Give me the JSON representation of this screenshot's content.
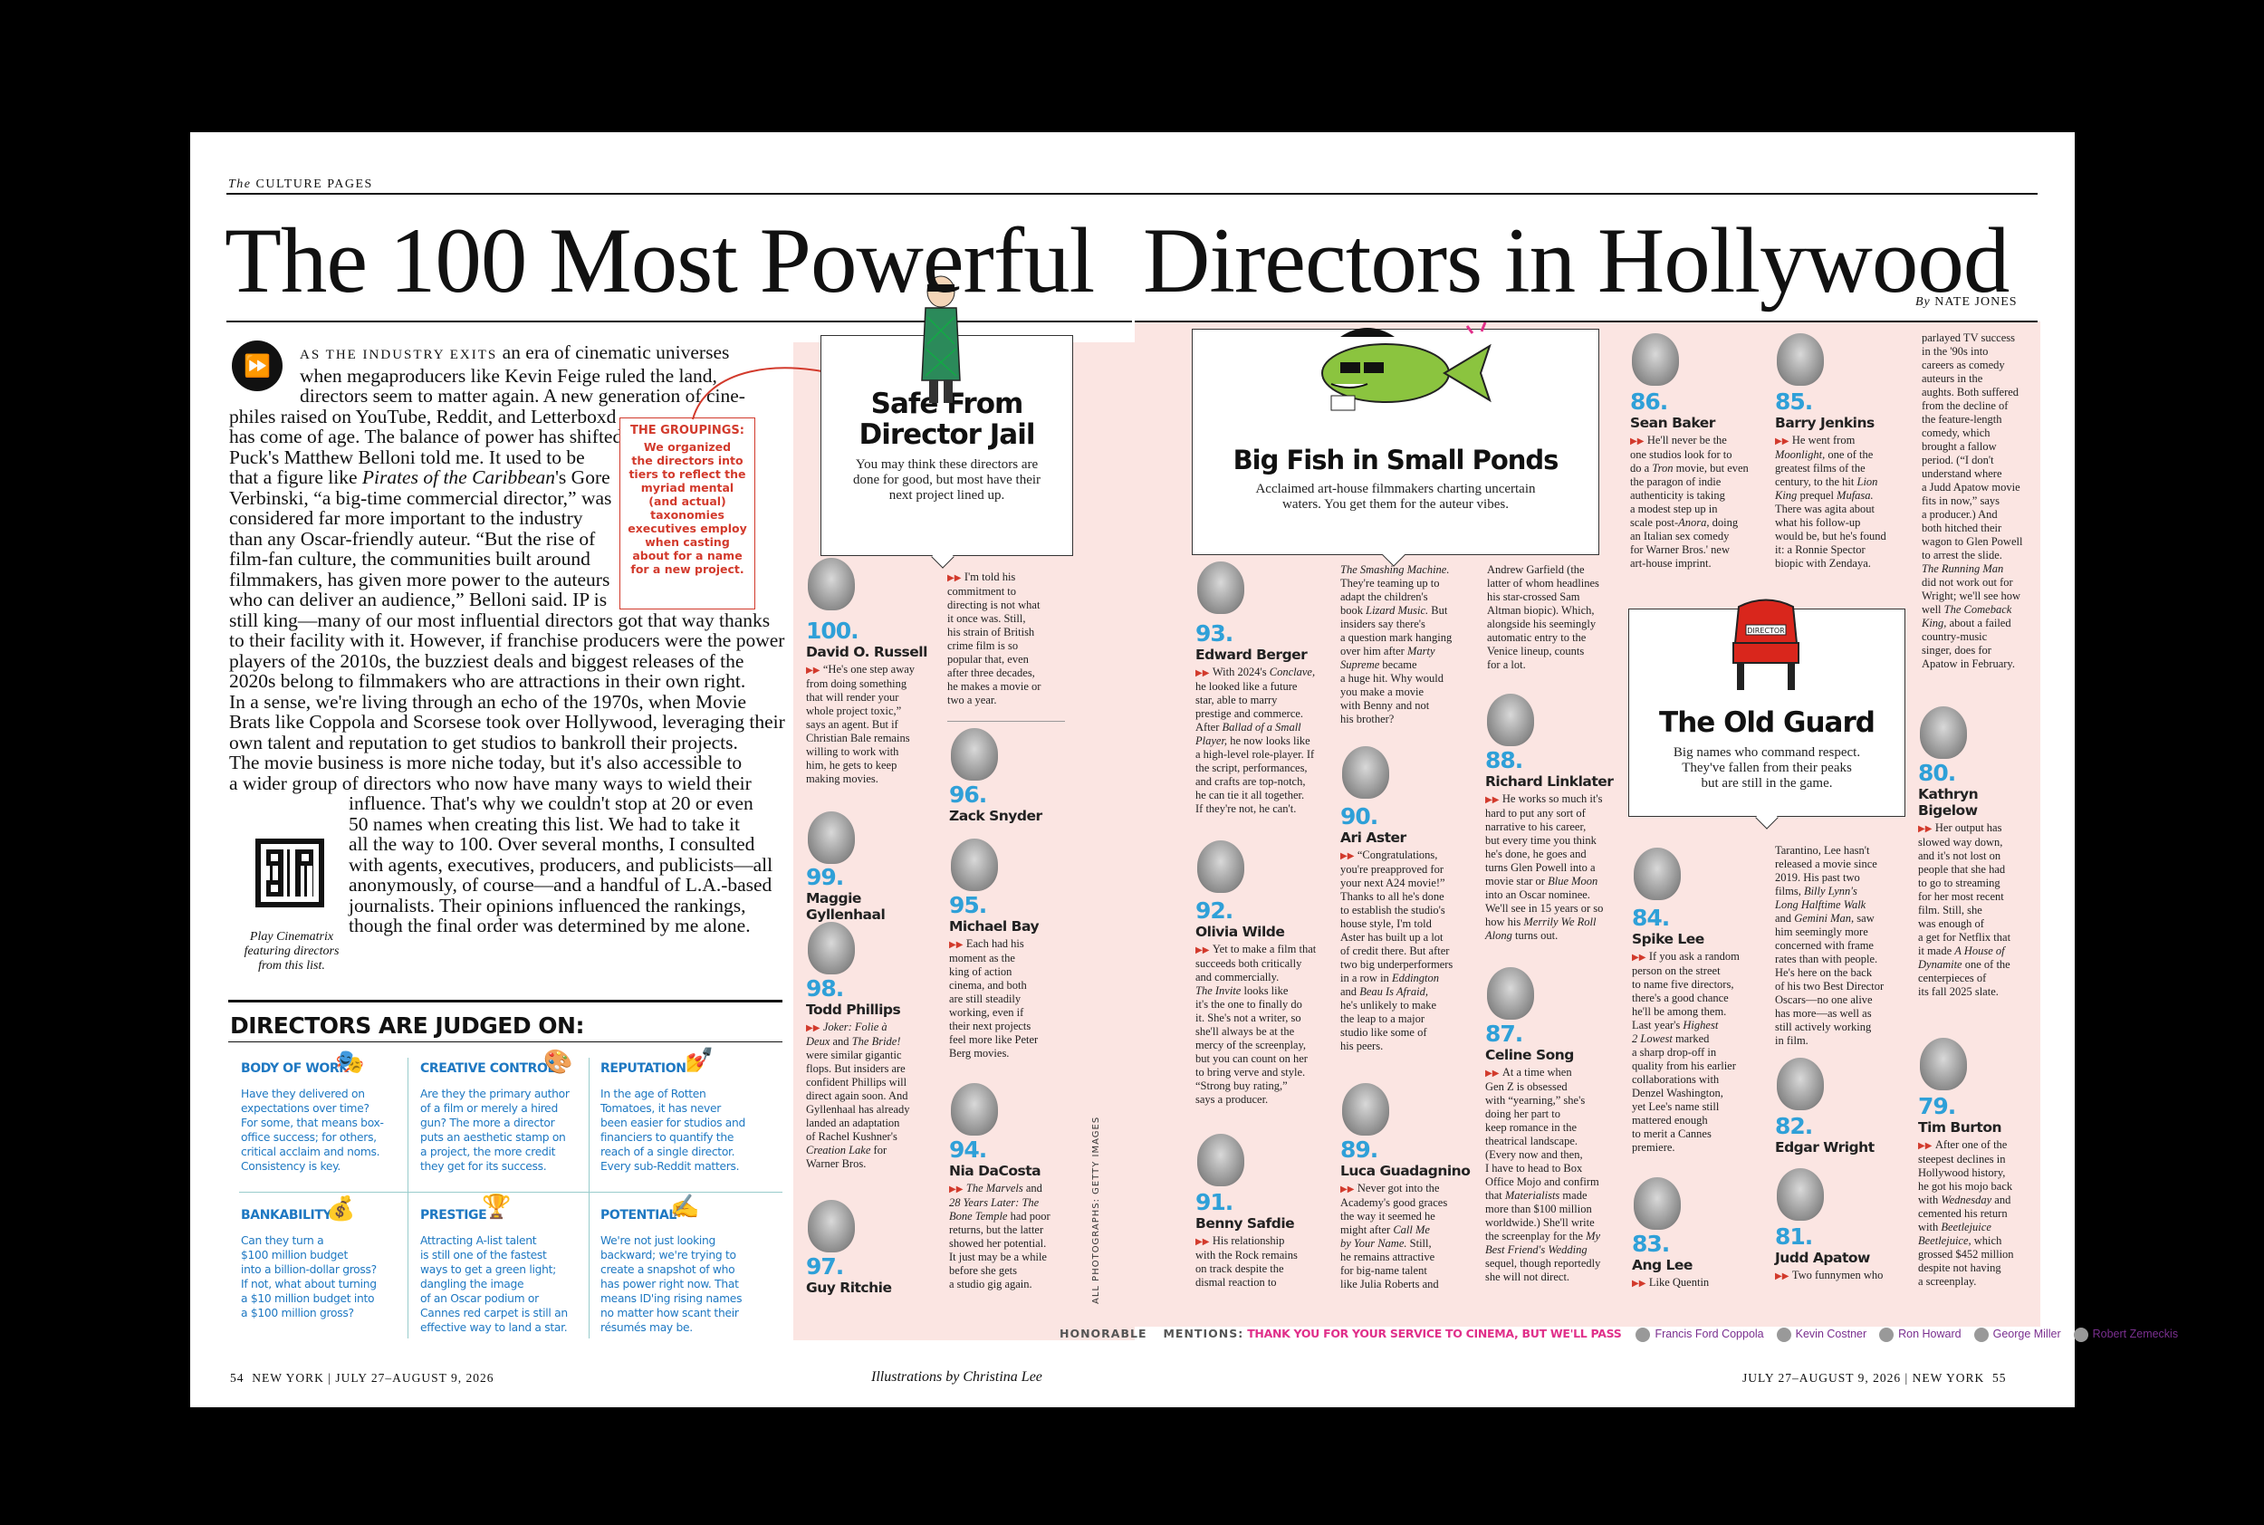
{
  "header": {
    "section_prefix": "The",
    "section": "CULTURE PAGES",
    "title_left": "The 100 Most Powerful",
    "title_right": "Directors in Hollywood",
    "byline_prefix": "By",
    "byline": "NATE JONES"
  },
  "intro": {
    "lead": "AS THE INDUSTRY EXITS",
    "l1": "an era of cinematic universes",
    "l2": "when megaproducers like Kevin Feige ruled the land,",
    "l3": "directors seem to matter again. A new generation of cine-",
    "l4": "philes raised on YouTube, Reddit, and Letterboxd",
    "l5": "has come of age. The balance of power has shifted,",
    "l6": "Puck's Matthew Belloni told me. It used to be",
    "l7a": "that a figure like ",
    "l7i": "Pirates of the Caribbean",
    "l7b": "'s Gore",
    "l8": "Verbinski, “a big-time commercial director,” was",
    "l9": "considered far more important to the industry",
    "l10": "than any Oscar-friendly auteur. “But the rise of",
    "l11": "film-fan culture, the communities built around",
    "l12": "filmmakers, has given more power to the auteurs",
    "l13": "who can deliver an audience,” Belloni said. IP is",
    "l14": "still king—many of our most influential directors got that way thanks",
    "l15": "to their facility with it. However, if franchise producers were the power",
    "l16": "players of the 2010s, the buzziest deals and biggest releases of the",
    "l17": "2020s belong to filmmakers who are attractions in their own right.",
    "l18": "In a sense, we're living through an echo of the 1970s, when Movie",
    "l19": "Brats like Coppola and Scorsese took over Hollywood, leveraging their",
    "l20": "own talent and reputation to get studios to bankroll their projects.",
    "l21": "The movie business is more niche today, but it's also accessible to",
    "l22": "a wider group of directors who now have many ways to wield their",
    "l23": "influence. That's why we couldn't stop at 20 or even",
    "l24": "50 names when creating this list. We had to take it",
    "l25": "all the way to 100. Over several months, I consulted",
    "l26": "with agents, executives, producers, and publicists—all",
    "l27": "anonymously, of course—and a handful of L.A.-based",
    "l28": "journalists. Their opinions influenced the rankings,",
    "l29": "though the final order was determined by me alone."
  },
  "qr_caption": {
    "l1": "Play Cinematrix",
    "l2": "featuring directors",
    "l3": "from this list."
  },
  "groupings": {
    "head": "THE GROUPINGS:",
    "l1": "We organized",
    "l2": "the directors into",
    "l3": "tiers to reflect the",
    "l4": "myriad mental",
    "l5": "(and actual)",
    "l6": "taxonomies",
    "l7": "executives employ",
    "l8": "when casting",
    "l9": "about for a name",
    "l10": "for a new project."
  },
  "judged": {
    "heading": "DIRECTORS ARE JUDGED ON:",
    "c1": {
      "label": "BODY OF WORK",
      "icon": "theater-masks-icon",
      "l1": "Have they delivered on",
      "l2": "expectations over time?",
      "l3": "For some, that means box-",
      "l4": "office success; for others,",
      "l5": "critical acclaim and noms.",
      "l6": "Consistency is key."
    },
    "c2": {
      "label": "CREATIVE CONTROL",
      "icon": "palette-icon",
      "l1": "Are they the primary author",
      "l2": "of a film or merely a hired",
      "l3": "gun? The more a director",
      "l4": "puts an aesthetic stamp on",
      "l5": "a project, the more credit",
      "l6": "they get for its success."
    },
    "c3": {
      "label": "REPUTATION",
      "icon": "nail-polish-icon",
      "l1": "In the age of Rotten",
      "l2": "Tomatoes, it has never",
      "l3": "been easier for studios and",
      "l4": "financiers to quantify the",
      "l5": "reach of a single director.",
      "l6": "Every sub-Reddit matters."
    },
    "c4": {
      "label": "BANKABILITY",
      "icon": "money-bag-icon",
      "l1": "Can they turn a",
      "l2": "$100 million budget",
      "l3": "into a billion-dollar gross?",
      "l4": "If not, what about turning",
      "l5": "a $10 million budget into",
      "l6": "a $100 million gross?"
    },
    "c5": {
      "label": "PRESTIGE",
      "icon": "trophy-icon",
      "l1": "Attracting A-list talent",
      "l2": "is still one of the fastest",
      "l3": "ways to get a green light;",
      "l4": "dangling the image",
      "l5": "of an Oscar podium or",
      "l6": "Cannes red carpet is still an",
      "l7": "effective way to land a star."
    },
    "c6": {
      "label": "POTENTIAL",
      "icon": "writing-hand-icon",
      "l1": "We're not just looking",
      "l2": "backward; we're trying to",
      "l3": "create a snapshot of who",
      "l4": "has power right now. That",
      "l5": "means ID'ing rising names",
      "l6": "no matter how scant their",
      "l7": "résumés may be."
    }
  },
  "tier1": {
    "title1": "Safe From",
    "title2": "Director Jail",
    "sub1": "You may think these directors are",
    "sub2": "done for good, but most have their",
    "sub3": "next project lined up."
  },
  "d100": {
    "num": "100.",
    "name": "David O. Russell",
    "t1": "“He's one step away",
    "t2": "from doing something",
    "t3": "that will render your",
    "t4": "whole project toxic,”",
    "t5": "says an agent. But if",
    "t6": "Christian Bale remains",
    "t7": "willing to work with",
    "t8": "him, he gets to keep",
    "t9": "making movies."
  },
  "d100b": {
    "t1": "I'm told his",
    "t2": "commitment to",
    "t3": "directing is not what",
    "t4": "it once was. Still,",
    "t5": "his strain of British",
    "t6": "crime film is so",
    "t7": "popular that, even",
    "t8": "after three decades,",
    "t9": "he makes a movie or",
    "t10": "two a year."
  },
  "d99": {
    "num": "99.",
    "name": "Maggie Gyllenhaal"
  },
  "d98": {
    "num": "98.",
    "name": "Todd Phillips",
    "t1i": "Joker: Folie à",
    "t2i": "Deux",
    "t2": " and ",
    "t2j": "The Bride!",
    "t3": "were similar gigantic",
    "t4": "flops. But insiders are",
    "t5": "confident Phillips will",
    "t6": "direct again soon. And",
    "t7": "Gyllenhaal has already",
    "t8": "landed an adaptation",
    "t9": "of Rachel Kushner's",
    "t10i": "Creation Lake",
    "t10": " for",
    "t11": "Warner Bros."
  },
  "d97": {
    "num": "97.",
    "name": "Guy Ritchie"
  },
  "d96": {
    "num": "96.",
    "name": "Zack Snyder"
  },
  "d95": {
    "num": "95.",
    "name": "Michael Bay",
    "t1": "Each had his",
    "t2": "moment as the",
    "t3": "king of action",
    "t4": "cinema, and both",
    "t5": "are still steadily",
    "t6": "working, even if",
    "t7": "their next projects",
    "t8": "feel more like Peter",
    "t9": "Berg movies."
  },
  "d94": {
    "num": "94.",
    "name": "Nia DaCosta",
    "t1i": "The Marvels",
    "t1": " and",
    "t2i": "28 Years Later: The",
    "t3i": "Bone Temple",
    "t3": " had poor",
    "t4": "returns, but the latter",
    "t5": "showed her potential.",
    "t6": "It just may be a while",
    "t7": "before she gets",
    "t8": "a studio gig again."
  },
  "credit": "ALL PHOTOGRAPHS: GETTY IMAGES",
  "tier2": {
    "title": "Big Fish in Small Ponds",
    "sub1": "Acclaimed art-house filmmakers charting uncertain",
    "sub2": "waters. You get them for the auteur vibes."
  },
  "d93": {
    "num": "93.",
    "name": "Edward Berger",
    "t1": "With 2024's ",
    "t1i": "Conclave,",
    "t2": "he looked like a future",
    "t3": "star, able to marry",
    "t4": "prestige and commerce.",
    "t5": "After ",
    "t5i": "Ballad of a Small",
    "t6i": "Player,",
    "t6": " he now looks like",
    "t7": "a high-level role-player. If",
    "t8": "the script, performances,",
    "t9": "and crafts are top-notch,",
    "t10": "he can tie it all together.",
    "t11": "If they're not, he can't."
  },
  "d92": {
    "num": "92.",
    "name": "Olivia Wilde",
    "t1": "Yet to make a film that",
    "t2": "succeeds both critically",
    "t3": "and commercially.",
    "t4i": "The Invite",
    "t4": " looks like",
    "t5": "it's the one to finally do",
    "t6": "it. She's not a writer, so",
    "t7": "she'll always be at the",
    "t8": "mercy of the screenplay,",
    "t9": "but you can count on her",
    "t10": "to bring verve and style.",
    "t11": "“Strong buy rating,”",
    "t12": "says a producer."
  },
  "d91": {
    "num": "91.",
    "name": "Benny Safdie",
    "t1": "His relationship",
    "t2": "with the Rock remains",
    "t3": "on track despite the",
    "t4": "dismal reaction to"
  },
  "c3col": {
    "t1i": "The Smashing Machine.",
    "t2": "They're teaming up to",
    "t3": "adapt the children's",
    "t4": "book ",
    "t4i": "Lizard Music.",
    "t4b": " But",
    "t5": "insiders say there's",
    "t6": "a question mark hanging",
    "t7": "over him after ",
    "t7i": "Marty",
    "t8i": "Supreme",
    "t8": " became",
    "t9": "a huge hit. Why would",
    "t10": "you make a movie",
    "t11": "with Benny and not",
    "t12": "his brother?"
  },
  "d90": {
    "num": "90.",
    "name": "Ari Aster",
    "t1": "“Congratulations,",
    "t2": "you're preapproved for",
    "t3": "your next A24 movie!”",
    "t4": "Thanks to all he's done",
    "t5": "to establish the studio's",
    "t6": "house style, I'm told",
    "t7": "Aster has built up a lot",
    "t8": "of credit there. But after",
    "t9": "two big underperformers",
    "t10": "in a row in ",
    "t10i": "Eddington",
    "t11": "and ",
    "t11i": "Beau Is Afraid,",
    "t12": "he's unlikely to make",
    "t13": "the leap to a major",
    "t14": "studio like some of",
    "t15": "his peers."
  },
  "d89": {
    "num": "89.",
    "name": "Luca Guadagnino",
    "t1": "Never got into the",
    "t2": "Academy's good graces",
    "t3": "the way it seemed he",
    "t4": "might after ",
    "t4i": "Call Me",
    "t5i": "by Your Name.",
    "t5": " Still,",
    "t6": "he remains attractive",
    "t7": "for big-name talent",
    "t8": "like Julia Roberts and"
  },
  "c4col": {
    "t1": "Andrew Garfield (the",
    "t2": "latter of whom headlines",
    "t3": "his star-crossed Sam",
    "t4": "Altman biopic). Which,",
    "t5": "alongside his seemingly",
    "t6": "automatic entry to the",
    "t7": "Venice lineup, counts",
    "t8": "for a lot."
  },
  "d88": {
    "num": "88.",
    "name": "Richard Linklater",
    "t1": "He works so much it's",
    "t2": "hard to put any sort of",
    "t3": "narrative to his career,",
    "t4": "but every time you think",
    "t5": "he's done, he goes and",
    "t6": "turns Glen Powell into a",
    "t7": "movie star or ",
    "t7i": "Blue Moon",
    "t8": "into an Oscar nominee.",
    "t9": "We'll see in 15 years or so",
    "t10": "how his ",
    "t10i": "Merrily We Roll",
    "t11i": "Along",
    "t11": " turns out."
  },
  "d87": {
    "num": "87.",
    "name": "Celine Song",
    "t1": "At a time when",
    "t2": "Gen Z is obsessed",
    "t3": "with “yearning,” she's",
    "t4": "doing her part to",
    "t5": "keep romance in the",
    "t6": "theatrical landscape.",
    "t7": "(Every now and then,",
    "t8": "I have to head to Box",
    "t9": "Office Mojo and confirm",
    "t10": "that ",
    "t10i": "Materialists",
    "t10b": " made",
    "t11": "more than $100 million",
    "t12": "worldwide.) She'll write",
    "t13": "the screenplay for the ",
    "t13i": "My",
    "t14i": "Best Friend's Wedding",
    "t15": "sequel, though reportedly",
    "t16": "she will not direct."
  },
  "d86": {
    "num": "86.",
    "name": "Sean Baker",
    "t1": "He'll never be the",
    "t2": "one studios look for to",
    "t3": "do a ",
    "t3i": "Tron",
    "t3b": " movie, but even",
    "t4": "the paragon of indie",
    "t5": "authenticity is taking",
    "t6": "a modest step up in",
    "t7": "scale post-",
    "t7i": "Anora,",
    "t7b": " doing",
    "t8": "an Italian sex comedy",
    "t9": "for Warner Bros.' new",
    "t10": "art-house imprint."
  },
  "d85": {
    "num": "85.",
    "name": "Barry Jenkins",
    "t1": "He went from",
    "t2i": "Moonlight,",
    "t2": " one of the",
    "t3": "greatest films of the",
    "t4": "century, to the hit ",
    "t4i": "Lion",
    "t5i": "King",
    "t5": " prequel ",
    "t5j": "Mufasa.",
    "t6": "There was agita about",
    "t7": "what his follow-up",
    "t8": "would be, but he's found",
    "t9": "it: a Ronnie Spector",
    "t10": "biopic with Zendaya."
  },
  "tier3": {
    "title": "The Old Guard",
    "sub1": "Big names who command respect.",
    "sub2": "They've fallen from their peaks",
    "sub3": "but are still in the game.",
    "chair_label": "DIRECTOR"
  },
  "d84": {
    "num": "84.",
    "name": "Spike Lee",
    "t1": "If you ask a random",
    "t2": "person on the street",
    "t3": "to name five directors,",
    "t4": "there's a good chance",
    "t5": "he'll be among them.",
    "t6": "Last year's ",
    "t6i": "Highest",
    "t7i": "2 Lowest",
    "t7": " marked",
    "t8": "a sharp drop-off in",
    "t9": "quality from his earlier",
    "t10": "collaborations with",
    "t11": "Denzel Washington,",
    "t12": "yet Lee's name still",
    "t13": "mattered enough",
    "t14": "to merit a Cannes",
    "t15": "premiere."
  },
  "d83": {
    "num": "83.",
    "name": "Ang Lee",
    "t1": "Like Quentin"
  },
  "c6col": {
    "t1": "Tarantino, Lee hasn't",
    "t2": "released a movie since",
    "t3": "2019. His past two",
    "t4": "films, ",
    "t4i": "Billy Lynn's",
    "t5i": "Long Halftime Walk",
    "t6": "and ",
    "t6i": "Gemini Man,",
    "t6b": " saw",
    "t7": "him seemingly more",
    "t8": "concerned with frame",
    "t9": "rates than with people.",
    "t10": "He's here on the back",
    "t11": "of his two Best Director",
    "t12": "Oscars—no one alive",
    "t13": "has more—as well as",
    "t14": "still actively working",
    "t15": "in film."
  },
  "d82": {
    "num": "82.",
    "name": "Edgar Wright"
  },
  "d81": {
    "num": "81.",
    "name": "Judd Apatow",
    "t1": "Two funnymen who"
  },
  "c7col": {
    "t1": "parlayed TV success",
    "t2": "in the '90s into",
    "t3": "careers as comedy",
    "t4": "auteurs in the",
    "t5": "aughts. Both suffered",
    "t6": "from the decline of",
    "t7": "the feature-length",
    "t8": "comedy, which",
    "t9": "brought a fallow",
    "t10": "period. (“I don't",
    "t11": "understand where",
    "t12": "a Judd Apatow movie",
    "t13": "fits in now,” says",
    "t14": "a producer.) And",
    "t15": "both hitched their",
    "t16": "wagon to Glen Powell",
    "t17": "to arrest the slide.",
    "t18i": "The Running Man",
    "t19": "did not work out for",
    "t20": "Wright; we'll see how",
    "t21": "well ",
    "t21i": "The Comeback",
    "t22i": "King,",
    "t22": " about a failed",
    "t23": "country-music",
    "t24": "singer, does for",
    "t25": "Apatow in February."
  },
  "d80": {
    "num": "80.",
    "name1": "Kathryn",
    "name2": "Bigelow",
    "t1": "Her output has",
    "t2": "slowed way down,",
    "t3": "and it's not lost on",
    "t4": "people that she had",
    "t5": "to go to streaming",
    "t6": "for her most recent",
    "t7": "film. Still, she",
    "t8": "was enough of",
    "t9": "a get for Netflix that",
    "t10": "it made ",
    "t10i": "A House of",
    "t11i": "Dynamite",
    "t11": " one of the",
    "t12": "centerpieces of",
    "t13": "its fall 2025 slate."
  },
  "d79": {
    "num": "79.",
    "name": "Tim Burton",
    "t1": "After one of the",
    "t2": "steepest declines in",
    "t3": "Hollywood history,",
    "t4": "he got his mojo back",
    "t5": "with ",
    "t5i": "Wednesday",
    "t5b": " and",
    "t6": "cemented his return",
    "t7": "with ",
    "t7i": "Beetlejuice",
    "t8i": "Beetlejuice,",
    "t8": " which",
    "t9": "grossed $452 million",
    "t10": "despite not having",
    "t11": "a screenplay."
  },
  "honorable": {
    "label": "HONORABLE",
    "label2": "MENTIONS:",
    "head": "THANK YOU FOR YOUR SERVICE TO CINEMA, BUT WE'LL PASS",
    "n1": "Francis Ford Coppola",
    "n2": "Kevin Costner",
    "n3": "Ron Howard",
    "n4": "George Miller",
    "n5": "Robert Zemeckis"
  },
  "footer": {
    "left_num": "54",
    "left_mag": "NEW YORK",
    "left_date": "JULY 27–AUGUST 9, 2026",
    "illus": "Illustrations by Christina Lee",
    "right_date": "JULY 27–AUGUST 9, 2026",
    "right_mag": "NEW YORK",
    "right_num": "55"
  },
  "colors": {
    "accent_red": "#d23a2c",
    "accent_blue": "#2fa0d8",
    "judged_blue": "#1e78c2",
    "pink": "#fbe5e2",
    "mentions_pink": "#e0308a"
  }
}
